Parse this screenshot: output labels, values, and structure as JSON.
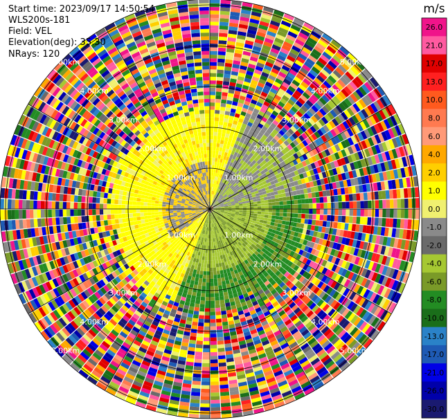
{
  "info": {
    "start_time": "Start time: 2023/09/17 14:50:54",
    "instrument": "WLS200s-181",
    "field": "Field: VEL",
    "elevation": "Elevation(deg): 35.30",
    "nrays": "NRays: 120"
  },
  "chart_data": {
    "type": "heatmap",
    "projection": "polar (PPI)",
    "colorbar": {
      "unit": "m/s",
      "ticks": [
        "26.0",
        "21.0",
        "17.0",
        "13.0",
        "10.0",
        "8.0",
        "6.0",
        "4.0",
        "2.0",
        "1.0",
        "0.0",
        "-1.0",
        "-2.0",
        "-4.0",
        "-6.0",
        "-8.0",
        "-10.0",
        "-13.0",
        "-17.0",
        "-21.0",
        "-26.0",
        "-30.0"
      ],
      "colors": [
        "#f0148a",
        "#ff5aa0",
        "#e00000",
        "#ff2020",
        "#ff5a1e",
        "#ff7a50",
        "#ff9a78",
        "#ffa800",
        "#ffcf00",
        "#ffff00",
        "#f0f070",
        "#8a8a8a",
        "#6a6a6a",
        "#a6c832",
        "#7a9a28",
        "#238c23",
        "#1a6e1a",
        "#2a82c8",
        "#1e5ab4",
        "#0000e6",
        "#0000aa",
        "#1a1a70"
      ]
    },
    "range_ring_labels": [
      "1.00km",
      "2.00km",
      "3.00km",
      "4.00km",
      "5.00km",
      "6.00km",
      "7.00km",
      "8.00km"
    ],
    "n_rays": 120
  }
}
